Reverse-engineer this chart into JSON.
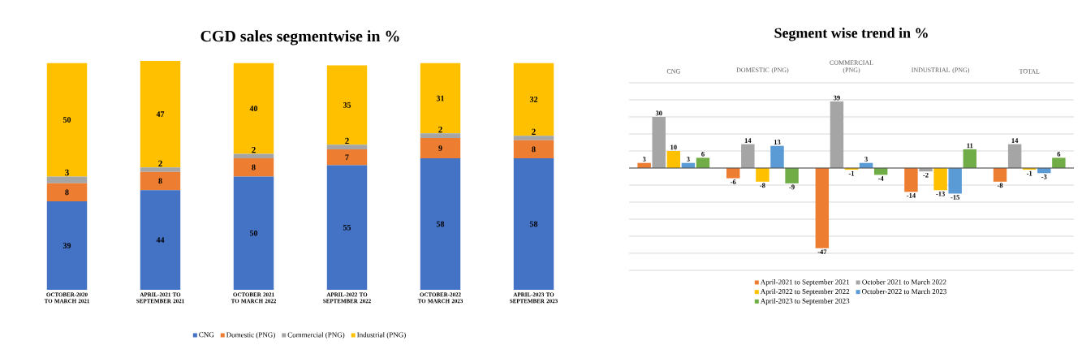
{
  "chart_data": [
    {
      "type": "bar",
      "title": "CGD sales segmentwise in %",
      "stacked": true,
      "data_labels": true,
      "legend": "bottom",
      "categories": [
        "OCTOBER-2020 TO MARCH 2021",
        "APRIL-2021 TO SEPTEMBER 2021",
        "OCTOBER 2021 TO MARCH 2022",
        "APRIL-2022 TO SEPTEMBER 2022",
        "OCTOBER-2022 TO MARCH 2023",
        "APRIL-2023 TO SEPTEMBER 2023"
      ],
      "series": [
        {
          "name": "CNG",
          "color": "#4472c4",
          "values": [
            39,
            44,
            50,
            55,
            58,
            58
          ]
        },
        {
          "name": "Domestic (PNG)",
          "color": "#ed7d31",
          "values": [
            8,
            8,
            8,
            7,
            9,
            8
          ]
        },
        {
          "name": "Commercial (PNG)",
          "color": "#a5a5a5",
          "values": [
            3,
            2,
            2,
            2,
            2,
            2
          ]
        },
        {
          "name": "Industrial (PNG)",
          "color": "#ffc000",
          "values": [
            50,
            47,
            40,
            35,
            31,
            32
          ]
        }
      ]
    },
    {
      "type": "bar",
      "title": "Segment wise trend in %",
      "data_labels": true,
      "legend": "bottom",
      "grid": "y",
      "tick_labels": "x",
      "categories": [
        "CNG",
        "DOMESTIC (PNG)",
        "COMMERCIAL (PNG)",
        "INDUSTRIAL (PNG)",
        "TOTAL"
      ],
      "ylim": [
        -60,
        50
      ],
      "yticks": [
        {
          "value": -60,
          "label": null
        },
        {
          "value": -50,
          "label": null
        },
        {
          "value": -40,
          "label": null
        },
        {
          "value": -30,
          "label": null
        },
        {
          "value": -20,
          "label": null
        },
        {
          "value": -10,
          "label": null
        },
        {
          "value": 0,
          "label": null
        },
        {
          "value": 10,
          "label": null
        },
        {
          "value": 20,
          "label": null
        },
        {
          "value": 30,
          "label": null
        },
        {
          "value": 40,
          "label": null
        },
        {
          "value": 50,
          "label": null
        }
      ],
      "series": [
        {
          "name": "April-2021 to September 2021",
          "color": "#ed7d31",
          "values": [
            3,
            -6,
            -47,
            -14,
            -8
          ]
        },
        {
          "name": "October 2021 to March 2022",
          "color": "#a5a5a5",
          "values": [
            30,
            14,
            39,
            -2,
            14
          ]
        },
        {
          "name": "April-2022 to September 2022",
          "color": "#ffc000",
          "values": [
            10,
            -8,
            -1,
            -13,
            -1
          ]
        },
        {
          "name": "October-2022 to March 2023",
          "color": "#5b9bd5",
          "values": [
            3,
            13,
            3,
            -15,
            -3
          ]
        },
        {
          "name": "April-2023 to September 2023",
          "color": "#70ad47",
          "values": [
            6,
            -9,
            -4,
            11,
            6
          ]
        }
      ]
    }
  ]
}
